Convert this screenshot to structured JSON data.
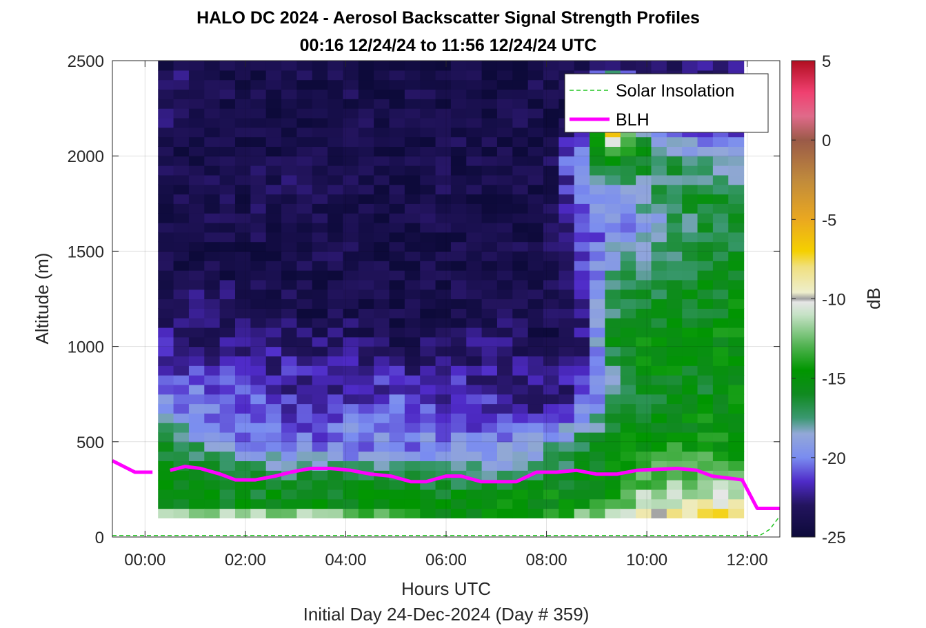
{
  "chart_data": {
    "type": "heatmap",
    "title": "HALO DC 2024 - Aerosol Backscatter Signal Strength Profiles",
    "subtitle": "00:16 12/24/24 to 11:56 12/24/24  UTC",
    "xlabel": "Hours UTC",
    "ylabel": "Altitude (m)",
    "footer": "Initial Day 24-Dec-2024 (Day # 359)",
    "colorbar_label": "dB",
    "xlim": [
      -0.65,
      12.65
    ],
    "ylim": [
      0,
      2500
    ],
    "clim": [
      -25,
      5
    ],
    "x_ticks": [
      0,
      2,
      4,
      6,
      8,
      10,
      12
    ],
    "x_tick_labels": [
      "00:00",
      "02:00",
      "04:00",
      "06:00",
      "08:00",
      "10:00",
      "12:00"
    ],
    "y_ticks": [
      0,
      500,
      1000,
      1500,
      2000,
      2500
    ],
    "y_tick_labels": [
      "0",
      "500",
      "1000",
      "1500",
      "2000",
      "2500"
    ],
    "colorbar_ticks": [
      5,
      0,
      -5,
      -10,
      -15,
      -20,
      -25
    ],
    "colorbar_tick_labels": [
      "5",
      "0",
      "-5",
      "-10",
      "-15",
      "-20",
      "-25"
    ],
    "grid": true,
    "legend_position": "top-right",
    "legend": [
      "Solar Insolation",
      "BLH"
    ],
    "data_extent": {
      "x_start": 0.26,
      "x_end": 11.93,
      "y_start": 100,
      "y_end": 2500
    },
    "series": [
      {
        "name": "BLH",
        "color": "#ff00ff",
        "segments": [
          {
            "x": [
              -0.65,
              -0.2,
              0.15
            ],
            "y": [
              400,
              340,
              340
            ]
          },
          {
            "x": [
              0.5,
              0.8,
              1.1,
              1.5,
              1.8,
              2.2,
              2.6,
              2.9,
              3.3,
              3.7,
              4.1,
              4.5,
              4.9,
              5.3,
              5.6,
              6.0,
              6.3,
              6.7,
              7.1,
              7.4,
              7.8,
              8.2,
              8.6,
              9.0,
              9.4,
              9.8,
              10.2,
              10.6,
              11.0,
              11.3,
              11.6,
              11.9,
              12.2,
              12.65
            ],
            "y": [
              350,
              370,
              360,
              330,
              300,
              300,
              320,
              340,
              360,
              360,
              350,
              330,
              320,
              290,
              290,
              320,
              320,
              290,
              290,
              290,
              340,
              340,
              350,
              330,
              330,
              350,
              355,
              360,
              350,
              320,
              310,
              300,
              150,
              150
            ]
          }
        ]
      },
      {
        "name": "Solar Insolation",
        "color": "#22c522",
        "x": [
          -0.65,
          12.25,
          12.45,
          12.65
        ],
        "y": [
          8,
          8,
          40,
          110
        ]
      }
    ],
    "heatmap_profiles": {
      "dB_breakpoints_altitude_m": [
        100,
        150,
        250,
        350,
        450,
        550,
        650,
        750,
        850,
        950,
        1050,
        1200,
        1400,
        1600,
        1800,
        2000,
        2200,
        2500
      ],
      "columns": [
        {
          "t": 0.26,
          "dB": [
            -8,
            -15,
            -16,
            -15,
            -16,
            -17,
            -19,
            -20,
            -21,
            -22,
            -22,
            -24,
            -24,
            -24,
            -24,
            -24,
            -23,
            -24
          ]
        },
        {
          "t": 1.0,
          "dB": [
            -8,
            -15,
            -16,
            -16,
            -17,
            -19,
            -20,
            -20,
            -21,
            -22,
            -23,
            -23,
            -24,
            -24,
            -24,
            -24,
            -24,
            -23
          ]
        },
        {
          "t": 2.0,
          "dB": [
            -8,
            -15,
            -16,
            -17,
            -19,
            -21,
            -21,
            -21,
            -22,
            -22,
            -23,
            -23,
            -24,
            -24,
            -24,
            -24,
            -24,
            -24
          ]
        },
        {
          "t": 3.0,
          "dB": [
            -9,
            -15,
            -16,
            -17,
            -20,
            -21,
            -21,
            -22,
            -22,
            -22,
            -23,
            -24,
            -24,
            -24,
            -23,
            -24,
            -24,
            -24
          ]
        },
        {
          "t": 4.0,
          "dB": [
            -10,
            -15,
            -16,
            -17,
            -20,
            -20,
            -21,
            -22,
            -22,
            -23,
            -23,
            -24,
            -24,
            -24,
            -24,
            -24,
            -24,
            -24
          ]
        },
        {
          "t": 5.0,
          "dB": [
            -12,
            -15,
            -15,
            -17,
            -20,
            -20,
            -20,
            -21,
            -22,
            -23,
            -24,
            -24,
            -24,
            -24,
            -24,
            -24,
            -24,
            -24
          ]
        },
        {
          "t": 6.0,
          "dB": [
            -15,
            -15,
            -16,
            -18,
            -20,
            -20,
            -21,
            -22,
            -22,
            -23,
            -23,
            -24,
            -24,
            -24,
            -24,
            -24,
            -24,
            -24
          ]
        },
        {
          "t": 7.0,
          "dB": [
            -15,
            -15,
            -16,
            -18,
            -19,
            -21,
            -21,
            -22,
            -22,
            -23,
            -23,
            -24,
            -24,
            -24,
            -24,
            -24,
            -24,
            -24
          ]
        },
        {
          "t": 8.0,
          "dB": [
            -13,
            -15,
            -15,
            -17,
            -18,
            -20,
            -22,
            -23,
            -23,
            -23,
            -24,
            -24,
            -24,
            -24,
            -24,
            -24,
            -24,
            -24
          ]
        },
        {
          "t": 8.7,
          "dB": [
            -10,
            -15,
            -15,
            -16,
            -16,
            -18,
            -20,
            -22,
            -22,
            -23,
            -23,
            -22,
            -21,
            -21,
            -20,
            -19,
            -24,
            -24
          ]
        },
        {
          "t": 9.3,
          "dB": [
            -10,
            -13,
            -15,
            -15,
            -16,
            -16,
            -17,
            -18,
            -18,
            -17,
            -16,
            -17,
            -18,
            -20,
            -19,
            -14,
            -2,
            -24
          ]
        },
        {
          "t": 10.0,
          "dB": [
            -9,
            -10,
            -12,
            -13,
            -14,
            -15,
            -16,
            -16,
            -15,
            -15,
            -15,
            -16,
            -17,
            -19,
            -18,
            -16,
            -21,
            -24
          ]
        },
        {
          "t": 11.0,
          "dB": [
            -7,
            -9,
            -12,
            -13,
            -14,
            -15,
            -15,
            -16,
            -16,
            -15,
            -15,
            -16,
            -16,
            -17,
            -16,
            -18,
            -22,
            -23
          ]
        },
        {
          "t": 11.93,
          "dB": [
            -6,
            -8,
            -11,
            -13,
            -14,
            -15,
            -15,
            -15,
            -15,
            -15,
            -15,
            -15,
            -16,
            -16,
            -17,
            -20,
            -22,
            -22
          ]
        }
      ]
    },
    "colormap_stops": [
      {
        "dB": -25,
        "color": "#0d0a3a"
      },
      {
        "dB": -23,
        "color": "#23145e"
      },
      {
        "dB": -21.5,
        "color": "#4f2bc8"
      },
      {
        "dB": -20,
        "color": "#7a8cf0"
      },
      {
        "dB": -18.5,
        "color": "#93a8d8"
      },
      {
        "dB": -17.5,
        "color": "#3a9870"
      },
      {
        "dB": -16,
        "color": "#108a20"
      },
      {
        "dB": -14.5,
        "color": "#009600"
      },
      {
        "dB": -13,
        "color": "#4fb24f"
      },
      {
        "dB": -11,
        "color": "#c6e2c6"
      },
      {
        "dB": -10.2,
        "color": "#e6e6e6"
      },
      {
        "dB": -10,
        "color": "#a0a0a0"
      },
      {
        "dB": -9.6,
        "color": "#eeeecc"
      },
      {
        "dB": -8,
        "color": "#f0e080"
      },
      {
        "dB": -7,
        "color": "#f5d000"
      },
      {
        "dB": -5,
        "color": "#eaa820"
      },
      {
        "dB": -2.5,
        "color": "#c08a3c"
      },
      {
        "dB": 0,
        "color": "#9a5a48"
      },
      {
        "dB": 1.5,
        "color": "#e06a8a"
      },
      {
        "dB": 3,
        "color": "#f04070"
      },
      {
        "dB": 5,
        "color": "#b00e20"
      }
    ]
  }
}
